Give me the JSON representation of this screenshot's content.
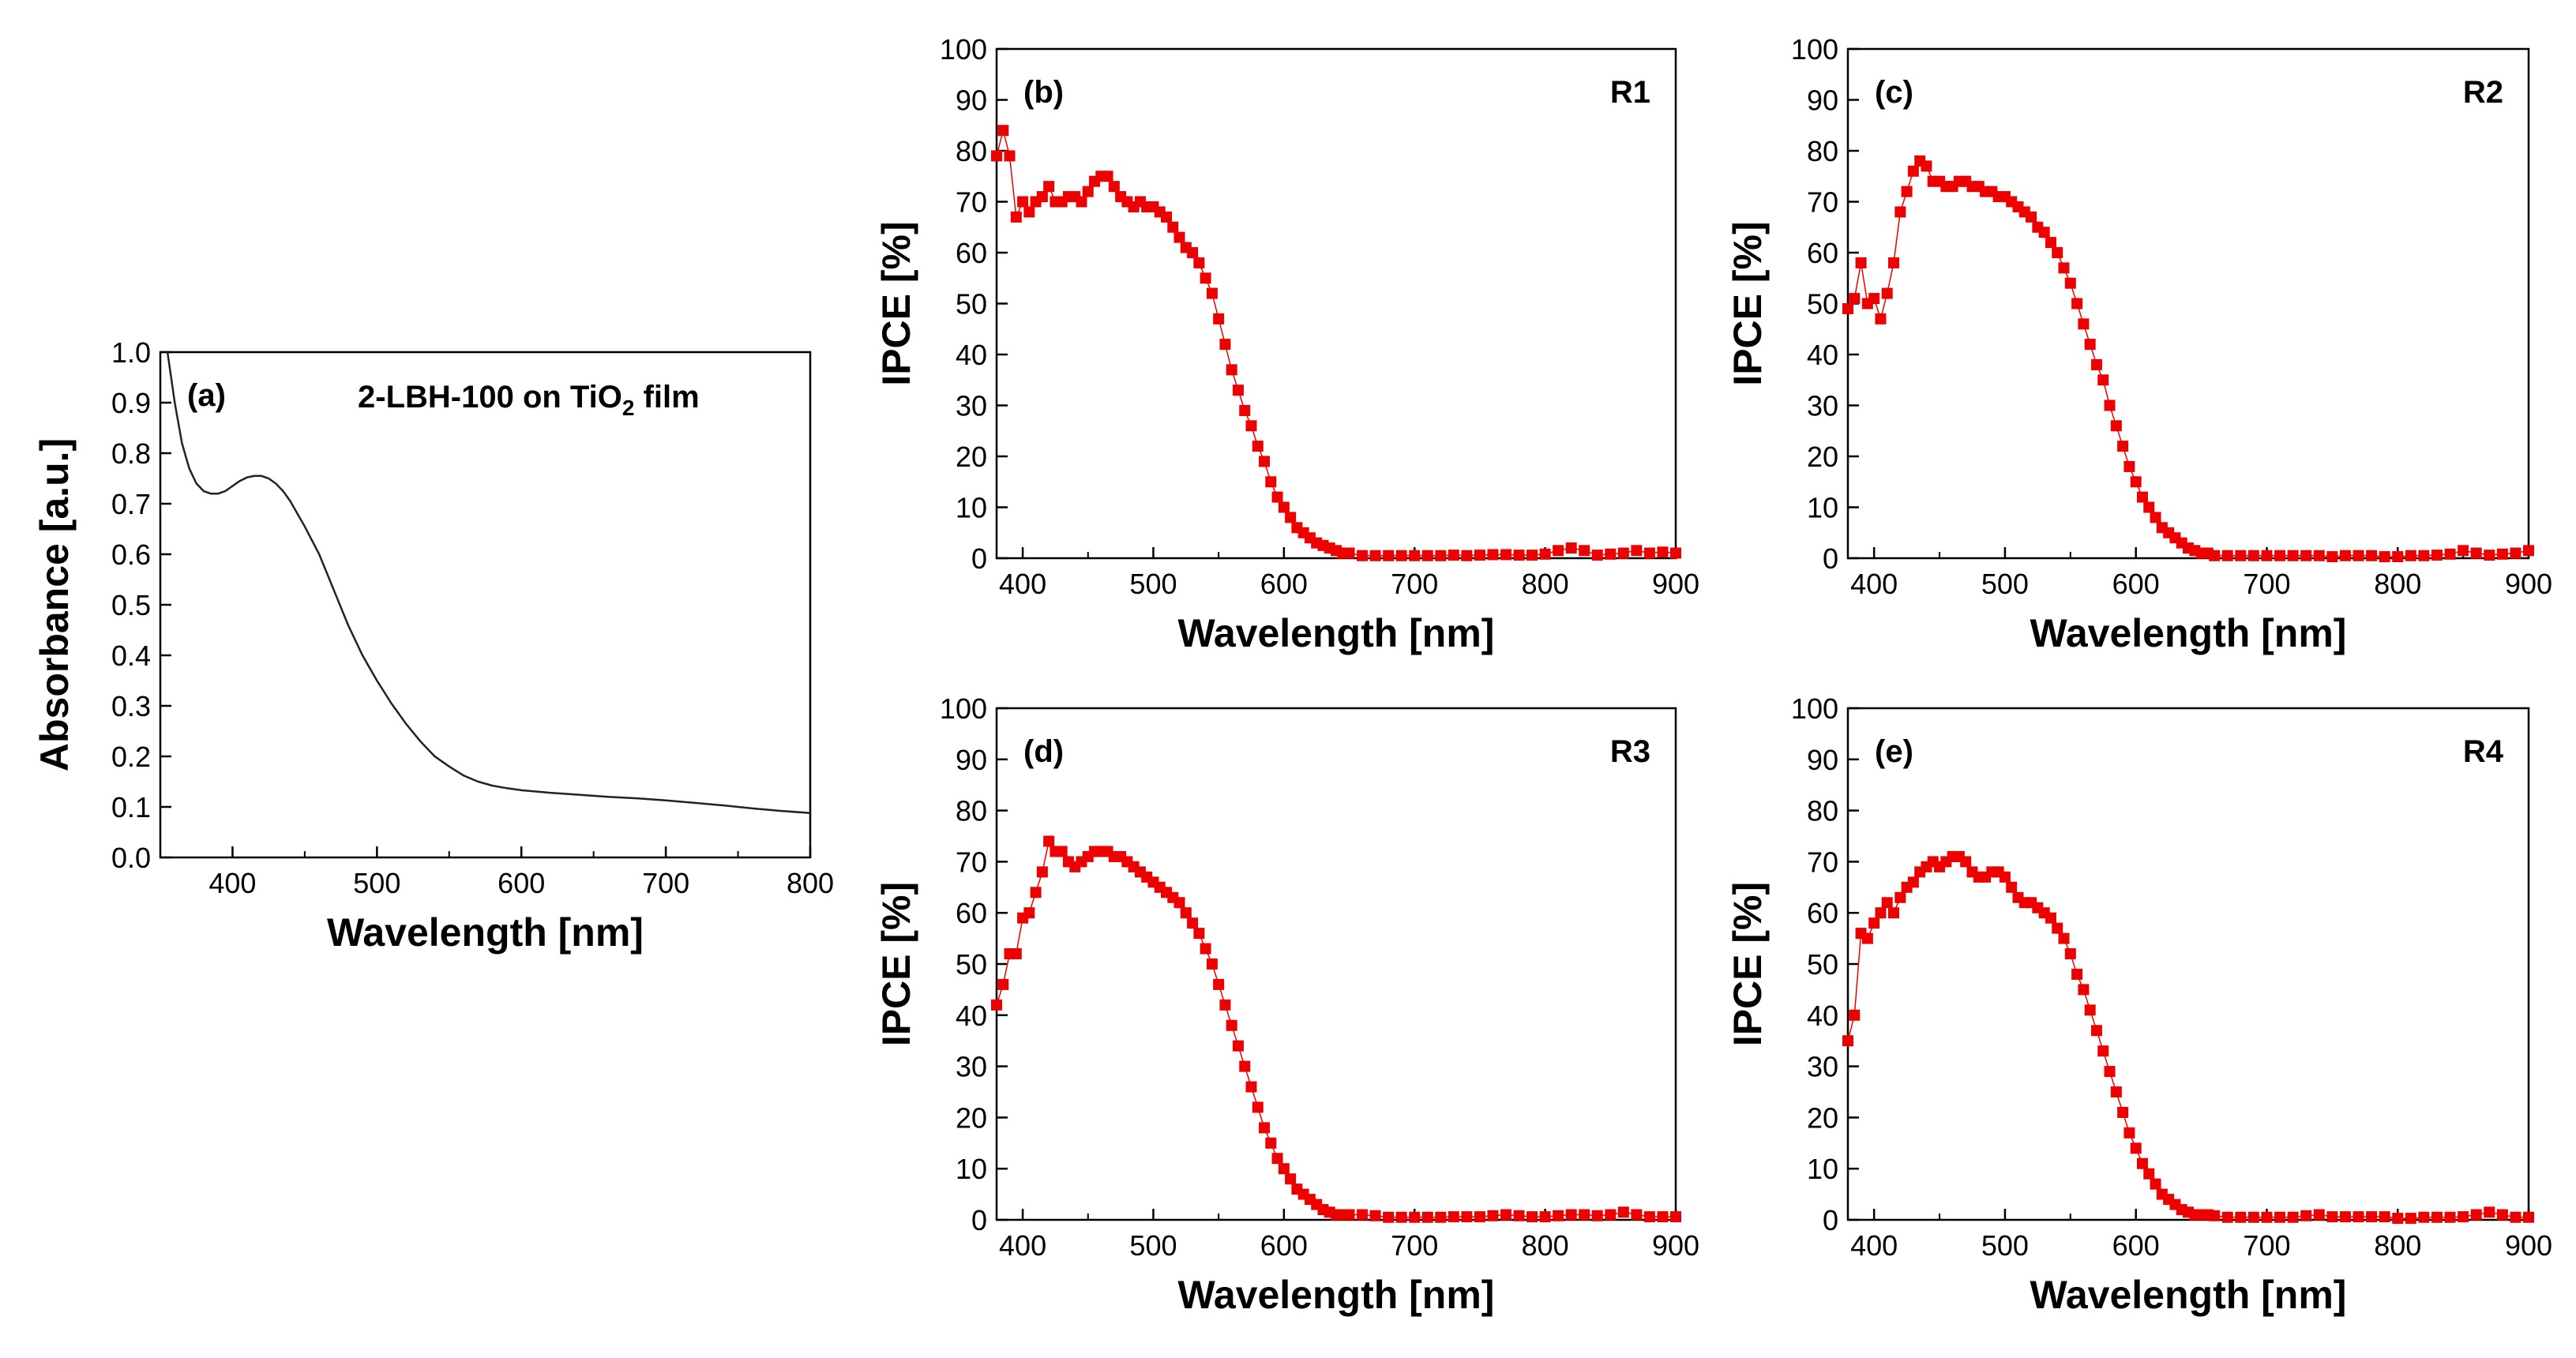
{
  "chart_data": [
    {
      "id": "a",
      "type": "line",
      "panel_label": "(a)",
      "annotation": "2-LBH-100 on TiO",
      "annotation_sub": "2",
      "annotation_tail": " film",
      "xlabel": "Wavelength [nm]",
      "ylabel": "Absorbance [a.u.]",
      "xlim": [
        350,
        800
      ],
      "ylim": [
        0,
        1.0
      ],
      "xticks": [
        400,
        500,
        600,
        700,
        800
      ],
      "yticks": [
        "0.0",
        "0.1",
        "0.2",
        "0.3",
        "0.4",
        "0.5",
        "0.6",
        "0.7",
        "0.8",
        "0.9",
        "1.0"
      ],
      "color": "#222222",
      "series": [
        {
          "name": "Absorbance",
          "x": [
            355,
            360,
            365,
            370,
            375,
            380,
            385,
            390,
            395,
            400,
            405,
            410,
            415,
            420,
            425,
            430,
            435,
            440,
            445,
            450,
            460,
            470,
            480,
            490,
            500,
            510,
            520,
            530,
            540,
            550,
            560,
            570,
            580,
            590,
            600,
            620,
            640,
            660,
            680,
            700,
            720,
            740,
            760,
            780,
            800
          ],
          "y": [
            1.0,
            0.9,
            0.82,
            0.77,
            0.74,
            0.725,
            0.72,
            0.72,
            0.725,
            0.735,
            0.745,
            0.752,
            0.755,
            0.755,
            0.75,
            0.74,
            0.725,
            0.705,
            0.68,
            0.655,
            0.6,
            0.53,
            0.46,
            0.4,
            0.35,
            0.305,
            0.265,
            0.23,
            0.2,
            0.18,
            0.162,
            0.15,
            0.142,
            0.137,
            0.133,
            0.128,
            0.124,
            0.12,
            0.117,
            0.113,
            0.108,
            0.103,
            0.097,
            0.092,
            0.088
          ]
        }
      ]
    },
    {
      "id": "b",
      "type": "line",
      "panel_label": "(b)",
      "series_label": "R1",
      "xlabel": "Wavelength [nm]",
      "ylabel": "IPCE [%]",
      "xlim": [
        380,
        900
      ],
      "ylim": [
        0,
        100
      ],
      "xticks": [
        400,
        500,
        600,
        700,
        800,
        900
      ],
      "yticks": [
        0,
        10,
        20,
        30,
        40,
        50,
        60,
        70,
        80,
        90,
        100
      ],
      "color": "#ee0000",
      "series": [
        {
          "name": "R1",
          "x": [
            380,
            385,
            390,
            395,
            400,
            405,
            410,
            415,
            420,
            425,
            430,
            435,
            440,
            445,
            450,
            455,
            460,
            465,
            470,
            475,
            480,
            485,
            490,
            495,
            500,
            505,
            510,
            515,
            520,
            525,
            530,
            535,
            540,
            545,
            550,
            555,
            560,
            565,
            570,
            575,
            580,
            585,
            590,
            595,
            600,
            605,
            610,
            615,
            620,
            625,
            630,
            635,
            640,
            645,
            650,
            660,
            670,
            680,
            690,
            700,
            710,
            720,
            730,
            740,
            750,
            760,
            770,
            780,
            790,
            800,
            810,
            820,
            830,
            840,
            850,
            860,
            870,
            880,
            890,
            900
          ],
          "y": [
            79,
            84,
            79,
            67,
            70,
            68,
            70,
            71,
            73,
            70,
            70,
            71,
            71,
            70,
            72,
            74,
            75,
            75,
            73,
            71,
            70,
            69,
            70,
            69,
            69,
            68,
            67,
            65,
            63,
            61,
            60,
            58,
            55,
            52,
            47,
            42,
            37,
            33,
            29,
            26,
            22,
            19,
            15,
            12,
            10,
            8,
            6,
            5,
            4,
            3,
            2.5,
            2,
            1.5,
            1,
            1,
            0.5,
            0.5,
            0.5,
            0.5,
            0.5,
            0.5,
            0.5,
            0.6,
            0.5,
            0.6,
            0.7,
            0.7,
            0.6,
            0.6,
            0.8,
            1.5,
            2,
            1.5,
            0.6,
            0.8,
            1,
            1.5,
            1,
            1.2,
            1
          ]
        }
      ]
    },
    {
      "id": "c",
      "type": "line",
      "panel_label": "(c)",
      "series_label": "R2",
      "xlabel": "Wavelength [nm]",
      "ylabel": "IPCE [%]",
      "xlim": [
        380,
        900
      ],
      "ylim": [
        0,
        100
      ],
      "xticks": [
        400,
        500,
        600,
        700,
        800,
        900
      ],
      "yticks": [
        0,
        10,
        20,
        30,
        40,
        50,
        60,
        70,
        80,
        90,
        100
      ],
      "color": "#ee0000",
      "series": [
        {
          "name": "R2",
          "x": [
            380,
            385,
            390,
            395,
            400,
            405,
            410,
            415,
            420,
            425,
            430,
            435,
            440,
            445,
            450,
            455,
            460,
            465,
            470,
            475,
            480,
            485,
            490,
            495,
            500,
            505,
            510,
            515,
            520,
            525,
            530,
            535,
            540,
            545,
            550,
            555,
            560,
            565,
            570,
            575,
            580,
            585,
            590,
            595,
            600,
            605,
            610,
            615,
            620,
            625,
            630,
            635,
            640,
            645,
            650,
            655,
            660,
            670,
            680,
            690,
            700,
            710,
            720,
            730,
            740,
            750,
            760,
            770,
            780,
            790,
            800,
            810,
            820,
            830,
            840,
            850,
            860,
            870,
            880,
            890,
            900
          ],
          "y": [
            49,
            51,
            58,
            50,
            51,
            47,
            52,
            58,
            68,
            72,
            76,
            78,
            77,
            74,
            74,
            73,
            73,
            74,
            74,
            73,
            73,
            72,
            72,
            71,
            71,
            70,
            69,
            68,
            67,
            65,
            64,
            62,
            60,
            57,
            54,
            50,
            46,
            42,
            38,
            35,
            30,
            26,
            22,
            18,
            15,
            12,
            10,
            8,
            6,
            5,
            4,
            3,
            2,
            1.5,
            1,
            1,
            0.5,
            0.5,
            0.5,
            0.5,
            0.5,
            0.5,
            0.5,
            0.5,
            0.5,
            0.3,
            0.5,
            0.5,
            0.5,
            0.3,
            0.3,
            0.5,
            0.5,
            0.6,
            0.8,
            1.5,
            1,
            0.6,
            0.8,
            1,
            1.5
          ]
        }
      ]
    },
    {
      "id": "d",
      "type": "line",
      "panel_label": "(d)",
      "series_label": "R3",
      "xlabel": "Wavelength [nm]",
      "ylabel": "IPCE [%]",
      "xlim": [
        380,
        900
      ],
      "ylim": [
        0,
        100
      ],
      "xticks": [
        400,
        500,
        600,
        700,
        800,
        900
      ],
      "yticks": [
        0,
        10,
        20,
        30,
        40,
        50,
        60,
        70,
        80,
        90,
        100
      ],
      "color": "#ee0000",
      "series": [
        {
          "name": "R3",
          "x": [
            380,
            385,
            390,
            395,
            400,
            405,
            410,
            415,
            420,
            425,
            430,
            435,
            440,
            445,
            450,
            455,
            460,
            465,
            470,
            475,
            480,
            485,
            490,
            495,
            500,
            505,
            510,
            515,
            520,
            525,
            530,
            535,
            540,
            545,
            550,
            555,
            560,
            565,
            570,
            575,
            580,
            585,
            590,
            595,
            600,
            605,
            610,
            615,
            620,
            625,
            630,
            635,
            640,
            645,
            650,
            660,
            670,
            680,
            690,
            700,
            710,
            720,
            730,
            740,
            750,
            760,
            770,
            780,
            790,
            800,
            810,
            820,
            830,
            840,
            850,
            860,
            870,
            880,
            890,
            900
          ],
          "y": [
            42,
            46,
            52,
            52,
            59,
            60,
            64,
            68,
            74,
            72,
            72,
            70,
            69,
            70,
            71,
            72,
            72,
            72,
            71,
            71,
            70,
            69,
            68,
            67,
            66,
            65,
            64,
            63,
            62,
            60,
            58,
            56,
            53,
            50,
            46,
            42,
            38,
            34,
            30,
            26,
            22,
            18,
            15,
            12,
            10,
            8,
            6,
            5,
            4,
            3,
            2,
            1.5,
            1,
            1,
            1,
            1,
            0.8,
            0.5,
            0.5,
            0.5,
            0.5,
            0.5,
            0.6,
            0.6,
            0.6,
            0.8,
            1,
            0.8,
            0.6,
            0.6,
            0.8,
            1,
            1,
            0.8,
            1,
            1.5,
            1,
            0.6,
            0.6,
            0.6
          ]
        }
      ]
    },
    {
      "id": "e",
      "type": "line",
      "panel_label": "(e)",
      "series_label": "R4",
      "xlabel": "Wavelength [nm]",
      "ylabel": "IPCE [%]",
      "xlim": [
        380,
        900
      ],
      "ylim": [
        0,
        100
      ],
      "xticks": [
        400,
        500,
        600,
        700,
        800,
        900
      ],
      "yticks": [
        0,
        10,
        20,
        30,
        40,
        50,
        60,
        70,
        80,
        90,
        100
      ],
      "color": "#ee0000",
      "series": [
        {
          "name": "R4",
          "x": [
            380,
            385,
            390,
            395,
            400,
            405,
            410,
            415,
            420,
            425,
            430,
            435,
            440,
            445,
            450,
            455,
            460,
            465,
            470,
            475,
            480,
            485,
            490,
            495,
            500,
            505,
            510,
            515,
            520,
            525,
            530,
            535,
            540,
            545,
            550,
            555,
            560,
            565,
            570,
            575,
            580,
            585,
            590,
            595,
            600,
            605,
            610,
            615,
            620,
            625,
            630,
            635,
            640,
            645,
            650,
            655,
            660,
            670,
            680,
            690,
            700,
            710,
            720,
            730,
            740,
            750,
            760,
            770,
            780,
            790,
            800,
            810,
            820,
            830,
            840,
            850,
            860,
            870,
            880,
            890,
            900
          ],
          "y": [
            35,
            40,
            56,
            55,
            58,
            60,
            62,
            60,
            63,
            65,
            66,
            68,
            69,
            70,
            69,
            70,
            71,
            71,
            70,
            68,
            67,
            67,
            68,
            68,
            67,
            65,
            63,
            62,
            62,
            61,
            60,
            59,
            57,
            55,
            52,
            48,
            45,
            41,
            37,
            33,
            29,
            25,
            21,
            17,
            14,
            11,
            9,
            7,
            5,
            4,
            3,
            2,
            1.5,
            1,
            1,
            1,
            0.8,
            0.5,
            0.5,
            0.5,
            0.5,
            0.5,
            0.5,
            0.8,
            1,
            0.6,
            0.6,
            0.6,
            0.6,
            0.6,
            0.3,
            0.3,
            0.5,
            0.5,
            0.5,
            0.6,
            1,
            1.5,
            1,
            0.5,
            0.5
          ]
        }
      ]
    }
  ]
}
